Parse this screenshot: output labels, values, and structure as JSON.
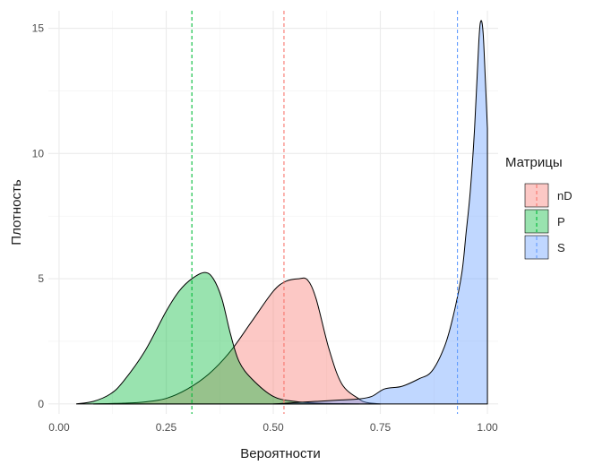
{
  "chart_data": {
    "type": "area",
    "title": "",
    "xlabel": "Вероятности",
    "ylabel": "Плотность",
    "xlim": [
      -0.025,
      1.025
    ],
    "ylim": [
      -0.4,
      15.7
    ],
    "x_ticks": [
      0.0,
      0.25,
      0.5,
      0.75,
      1.0
    ],
    "x_tick_labels": [
      "0.00",
      "0.25",
      "0.50",
      "0.75",
      "1.00"
    ],
    "y_ticks": [
      0,
      5,
      10,
      15
    ],
    "y_tick_labels": [
      "0",
      "5",
      "10",
      "15"
    ],
    "grid": true,
    "legend": {
      "title": "Матрицы",
      "placement": "right",
      "entries": [
        "nD",
        "P",
        "S"
      ]
    },
    "series": [
      {
        "name": "nD",
        "fill_color": "#F8766D",
        "mean": 0.525,
        "x": [
          0.08,
          0.15,
          0.2,
          0.25,
          0.3,
          0.35,
          0.4,
          0.45,
          0.5,
          0.53,
          0.56,
          0.58,
          0.6,
          0.63,
          0.66,
          0.7,
          0.72,
          0.75
        ],
        "y": [
          0.0,
          0.03,
          0.08,
          0.22,
          0.6,
          1.2,
          2.1,
          3.3,
          4.5,
          4.9,
          5.0,
          4.95,
          4.2,
          2.2,
          0.8,
          0.2,
          0.05,
          0.0
        ]
      },
      {
        "name": "P",
        "fill_color": "#00BA38",
        "mean": 0.31,
        "x": [
          0.04,
          0.08,
          0.12,
          0.15,
          0.2,
          0.25,
          0.28,
          0.31,
          0.34,
          0.36,
          0.38,
          0.4,
          0.42,
          0.45,
          0.5,
          0.55,
          0.6,
          0.7
        ],
        "y": [
          0.0,
          0.1,
          0.4,
          0.9,
          2.1,
          3.7,
          4.5,
          5.0,
          5.25,
          5.0,
          4.2,
          2.8,
          1.7,
          1.0,
          0.3,
          0.1,
          0.03,
          0.0
        ]
      },
      {
        "name": "S",
        "fill_color": "#619CFF",
        "mean": 0.93,
        "x": [
          0.5,
          0.55,
          0.6,
          0.65,
          0.7,
          0.73,
          0.76,
          0.8,
          0.84,
          0.87,
          0.9,
          0.92,
          0.94,
          0.95,
          0.96,
          0.97,
          0.98,
          0.985,
          0.99,
          0.995,
          1.0
        ],
        "y": [
          0.0,
          0.05,
          0.1,
          0.15,
          0.2,
          0.3,
          0.6,
          0.7,
          1.0,
          1.3,
          2.3,
          3.5,
          5.2,
          6.8,
          8.5,
          11.0,
          14.5,
          15.3,
          14.8,
          13.0,
          11.0
        ]
      }
    ]
  }
}
